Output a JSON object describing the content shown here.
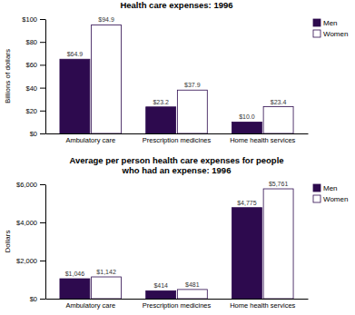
{
  "chart_data": [
    {
      "type": "bar",
      "title": "Health care expenses: 1996",
      "ylabel": "Billions of dollars",
      "categories": [
        "Ambulatory care",
        "Prescription medicines",
        "Home health services"
      ],
      "series": [
        {
          "name": "Men",
          "color": "#2d0a4e",
          "values": [
            64.9,
            23.2,
            10.0
          ],
          "value_labels": [
            "$64.9",
            "$23.2",
            "$10.0"
          ]
        },
        {
          "name": "Women",
          "color": "#ffffff",
          "values": [
            94.9,
            37.9,
            23.4
          ],
          "value_labels": [
            "$94.9",
            "$37.9",
            "$23.4"
          ]
        }
      ],
      "ylim": [
        0,
        100
      ],
      "yticks": [
        {
          "value": 0,
          "label": "$0"
        },
        {
          "value": 20,
          "label": "$20"
        },
        {
          "value": 40,
          "label": "$40"
        },
        {
          "value": 60,
          "label": "$60"
        },
        {
          "value": 80,
          "label": "$80"
        },
        {
          "value": 100,
          "label": "$100"
        }
      ],
      "data_labels": true,
      "legend": "upper right"
    },
    {
      "type": "bar",
      "title": "Average per person health care expenses for people\nwho had an expense: 1996",
      "ylabel": "Dollars",
      "categories": [
        "Ambulatory care",
        "Prescription medicines",
        "Home health services"
      ],
      "series": [
        {
          "name": "Men",
          "color": "#2d0a4e",
          "values": [
            1046,
            414,
            4775
          ],
          "value_labels": [
            "$1,046",
            "$414",
            "$4,775"
          ]
        },
        {
          "name": "Women",
          "color": "#ffffff",
          "values": [
            1142,
            481,
            5761
          ],
          "value_labels": [
            "$1,142",
            "$481",
            "$5,761"
          ]
        }
      ],
      "ylim": [
        0,
        6000
      ],
      "yticks": [
        {
          "value": 0,
          "label": "$0"
        },
        {
          "value": 2000,
          "label": "$2,000"
        },
        {
          "value": 4000,
          "label": "$4,000"
        },
        {
          "value": 6000,
          "label": "$6,000"
        }
      ],
      "data_labels": true,
      "legend": "upper right"
    }
  ]
}
